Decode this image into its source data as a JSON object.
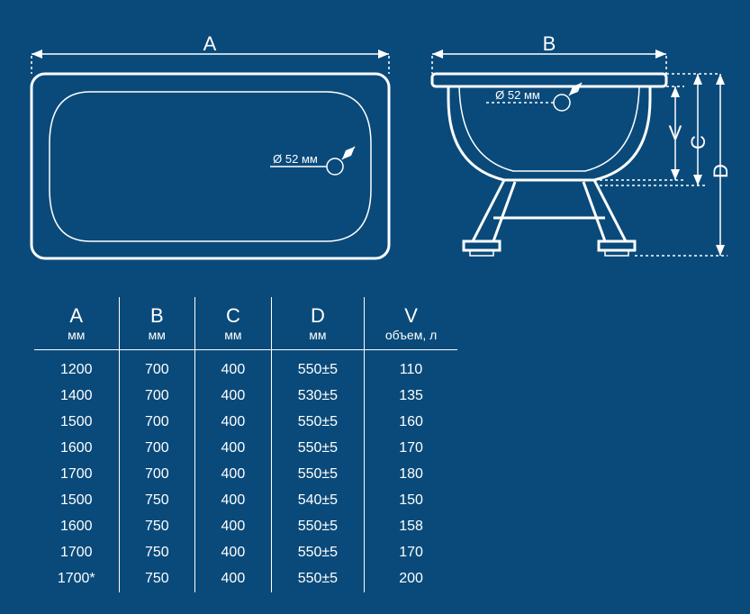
{
  "colors": {
    "background": "#0a4a7a",
    "stroke": "#ffffff",
    "text": "#ffffff"
  },
  "diagram": {
    "dimA": "A",
    "dimB": "B",
    "dimC": "C",
    "dimD": "D",
    "dimV": "V",
    "drain_label_left": "Ø 52 мм",
    "drain_label_right": "Ø 52 мм"
  },
  "table": {
    "columns": [
      {
        "letter": "A",
        "unit": "мм"
      },
      {
        "letter": "B",
        "unit": "мм"
      },
      {
        "letter": "C",
        "unit": "мм"
      },
      {
        "letter": "D",
        "unit": "мм"
      },
      {
        "letter": "V",
        "unit": "объем, л"
      }
    ],
    "rows": [
      [
        "1200",
        "700",
        "400",
        "550±5",
        "110"
      ],
      [
        "1400",
        "700",
        "400",
        "530±5",
        "135"
      ],
      [
        "1500",
        "700",
        "400",
        "550±5",
        "160"
      ],
      [
        "1600",
        "700",
        "400",
        "550±5",
        "170"
      ],
      [
        "1700",
        "700",
        "400",
        "550±5",
        "180"
      ],
      [
        "1500",
        "750",
        "400",
        "540±5",
        "150"
      ],
      [
        "1600",
        "750",
        "400",
        "550±5",
        "158"
      ],
      [
        "1700",
        "750",
        "400",
        "550±5",
        "170"
      ],
      [
        "1700*",
        "750",
        "400",
        "550±5",
        "200"
      ]
    ]
  }
}
